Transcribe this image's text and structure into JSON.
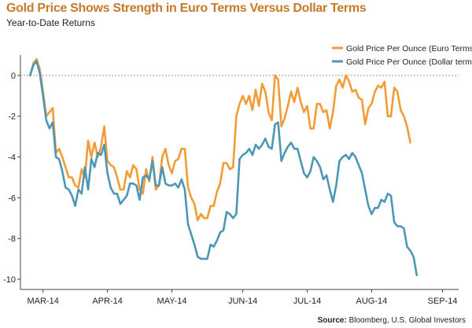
{
  "header": {
    "title": "Gold Price Shows Strength in Euro Terms Versus Dollar Terms",
    "subtitle": "Year-to-Date Returns"
  },
  "footer": {
    "source_label": "Source:",
    "source_text": "Bloomberg, U.S. Global Investors"
  },
  "colors": {
    "euro": "#f39c34",
    "dollar": "#4d96b8",
    "axis": "#444444",
    "zero_line": "#999999"
  },
  "chart_data": {
    "type": "line",
    "title": "Gold Price Shows Strength in Euro Terms Versus Dollar Terms",
    "subtitle": "Year-to-Date Returns",
    "xlabel": "",
    "ylabel": "",
    "ylim": [
      -10.5,
      1.0
    ],
    "yticks": [
      0,
      -2,
      -4,
      -6,
      -8,
      -10
    ],
    "ytick_labels": [
      "0",
      "-2",
      "-4",
      "-6",
      "-8",
      "-10"
    ],
    "x_tick_labels": [
      "MAR-14",
      "APR-14",
      "MAY-14",
      "JUN-14",
      "JUL-14",
      "AUG-14",
      "SEP-14"
    ],
    "x_tick_positions": [
      4,
      24,
      44,
      66,
      86,
      106,
      128
    ],
    "x_range": [
      -3,
      133
    ],
    "grid": false,
    "zero_line": "dashed",
    "legend_position": "top-right",
    "series": [
      {
        "name": "Gold Price Per Ounce (Euro Terms)",
        "color": "#f39c34",
        "values": [
          0,
          0.6,
          0.8,
          0.3,
          -0.8,
          -2,
          -1.8,
          -1.6,
          -3.8,
          -3.6,
          -4,
          -4.5,
          -5,
          -5,
          -5.4,
          -5.5,
          -4.6,
          -5,
          -3.2,
          -4,
          -3.3,
          -4,
          -3.5,
          -2.5,
          -4.2,
          -4.4,
          -4.5,
          -5,
          -5.6,
          -5.6,
          -4.7,
          -5,
          -4.4,
          -4.6,
          -5.6,
          -5.8,
          -4.6,
          -5.2,
          -4,
          -5.6,
          -5.4,
          -4,
          -3.6,
          -4.4,
          -4.8,
          -4.2,
          -4.1,
          -3.6,
          -3.6,
          -5.5,
          -6,
          -6.3,
          -7.1,
          -6.8,
          -7,
          -7,
          -6.4,
          -6.4,
          -5.7,
          -5.3,
          -4.3,
          -4.3,
          -4.6,
          -4.5,
          -2,
          -1.4,
          -1,
          -1.4,
          -1,
          -1.7,
          -0.7,
          -1.5,
          -0.4,
          -0.8,
          -1.8,
          -2.2,
          0,
          -0.2,
          -2.5,
          -2.1,
          -1.5,
          -0.8,
          -1.3,
          -0.6,
          -1.3,
          -1.8,
          -1.5,
          -2.6,
          -2.6,
          -1.4,
          -1.4,
          -1.8,
          -1.7,
          -2.6,
          -1.8,
          -0.5,
          -0.2,
          -0.6,
          0,
          -0.3,
          -0.8,
          -0.7,
          -1.1,
          -1.2,
          -2.4,
          -1.6,
          -1.4,
          -0.8,
          -0.5,
          -0.6,
          -0.3,
          -2,
          -2,
          -0.6,
          -0.8,
          -1.7,
          -2,
          -2.5,
          -3.3
        ]
      },
      {
        "name": "Gold Price Per Ounce (Dollar terms)",
        "color": "#4d96b8",
        "values": [
          0,
          0.5,
          0.7,
          0.1,
          -1,
          -2.2,
          -2.6,
          -2.3,
          -4,
          -4.1,
          -4.7,
          -5.5,
          -5.6,
          -5.9,
          -6.4,
          -5.6,
          -5.8,
          -4.5,
          -5.6,
          -4.1,
          -4.5,
          -3.8,
          -3.9,
          -3.4,
          -4.8,
          -5.5,
          -5.8,
          -5.8,
          -6.3,
          -6.1,
          -5.9,
          -5.3,
          -5.3,
          -5.4,
          -6.1,
          -5,
          -4.9,
          -5.1,
          -4.2,
          -5.4,
          -5.4,
          -4.5,
          -5.3,
          -5.4,
          -5.4,
          -5.3,
          -5.5,
          -5.1,
          -5.6,
          -7.3,
          -7.8,
          -8.3,
          -8.9,
          -9,
          -9,
          -9,
          -8.3,
          -8.4,
          -8.1,
          -7.7,
          -7.6,
          -6.7,
          -6.8,
          -7,
          -6.8,
          -4.1,
          -3.9,
          -3.8,
          -3.6,
          -3.9,
          -3.4,
          -3.6,
          -3.4,
          -3.1,
          -3.5,
          -3.6,
          -2.4,
          -2.3,
          -4.2,
          -3.8,
          -3.5,
          -3.3,
          -3.6,
          -3.6,
          -4.2,
          -4.8,
          -5,
          -4.7,
          -4,
          -4.2,
          -4.5,
          -5.1,
          -4.9,
          -5.6,
          -6.2,
          -5.4,
          -4.2,
          -4,
          -3.9,
          -4.1,
          -3.8,
          -4,
          -4.4,
          -4.8,
          -5.6,
          -6.4,
          -6.8,
          -6.5,
          -6.5,
          -6.1,
          -6.2,
          -5.8,
          -5.9,
          -7.2,
          -7.4,
          -7.4,
          -7.5,
          -8.4,
          -8.6,
          -8.9,
          -9.8
        ]
      }
    ]
  }
}
